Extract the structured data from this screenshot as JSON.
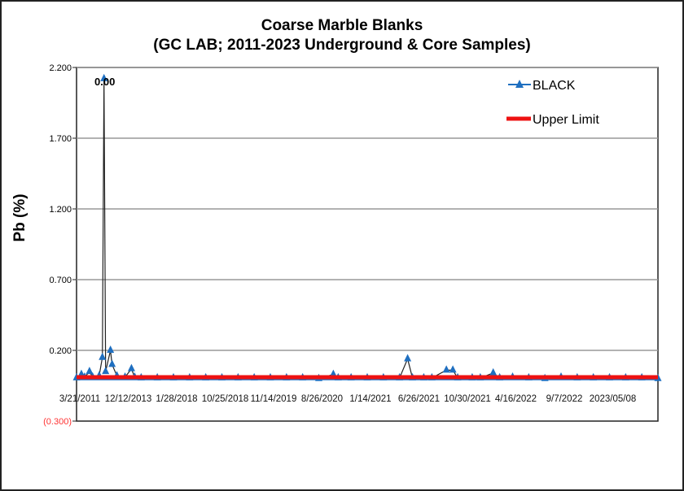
{
  "chart_data": {
    "type": "line",
    "title": "Coarse Marble Blanks",
    "subtitle": "(GC LAB; 2011-2023 Underground & Core Samples)",
    "xlabel": "",
    "ylabel": "Pb (%)",
    "ylim": [
      -0.3,
      2.2
    ],
    "yticks": [
      2.2,
      1.7,
      1.2,
      0.7,
      0.2,
      -0.3
    ],
    "ytick_labels": [
      "2.200",
      "1.700",
      "1.200",
      "0.700",
      "0.200",
      "(0.300)"
    ],
    "negative_tick_color": "#ff3333",
    "grid": true,
    "x_tick_labels": [
      "3/21/2011",
      "12/12/2013",
      "1/28/2018",
      "10/25/2018",
      "11/14/2019",
      "8/26/2020",
      "1/14/2021",
      "6/26/2021",
      "10/30/2021",
      "4/16/2022",
      "9/7/2022",
      "2023/05/08"
    ],
    "legend_position": "top-right",
    "annotations": [
      {
        "text": "0.00",
        "at_x": 17
      }
    ],
    "series": [
      {
        "name": "BLACK",
        "color": "#1f6fc0",
        "marker": "triangle",
        "x": [
          0,
          3,
          5,
          8,
          10,
          14,
          16,
          17,
          18,
          21,
          22,
          25,
          30,
          34,
          36,
          40,
          50,
          60,
          70,
          80,
          90,
          100,
          110,
          120,
          130,
          140,
          150,
          159,
          162,
          170,
          180,
          190,
          200,
          205,
          208,
          215,
          220,
          229,
          233,
          236,
          245,
          250,
          258,
          262,
          270,
          280,
          290,
          300,
          310,
          320,
          330,
          340,
          350,
          360
        ],
        "y": [
          0.005,
          0.03,
          0.01,
          0.05,
          0.01,
          0.02,
          0.15,
          2.12,
          0.05,
          0.2,
          0.1,
          0.02,
          0.01,
          0.07,
          0.01,
          0.005,
          0.005,
          0.005,
          0.005,
          0.005,
          0.005,
          0.005,
          0.005,
          0.005,
          0.005,
          0.005,
          0.0,
          0.03,
          0.005,
          0.005,
          0.005,
          0.005,
          0.005,
          0.14,
          0.005,
          0.005,
          0.005,
          0.06,
          0.06,
          0.005,
          0.005,
          0.005,
          0.04,
          0.005,
          0.01,
          0.005,
          0.0,
          0.01,
          0.005,
          0.005,
          0.005,
          0.005,
          0.005,
          0.0
        ]
      },
      {
        "name": "Upper Limit",
        "color": "#ee1111",
        "x": [
          0,
          360
        ],
        "y": [
          0.01,
          0.01
        ]
      }
    ]
  }
}
